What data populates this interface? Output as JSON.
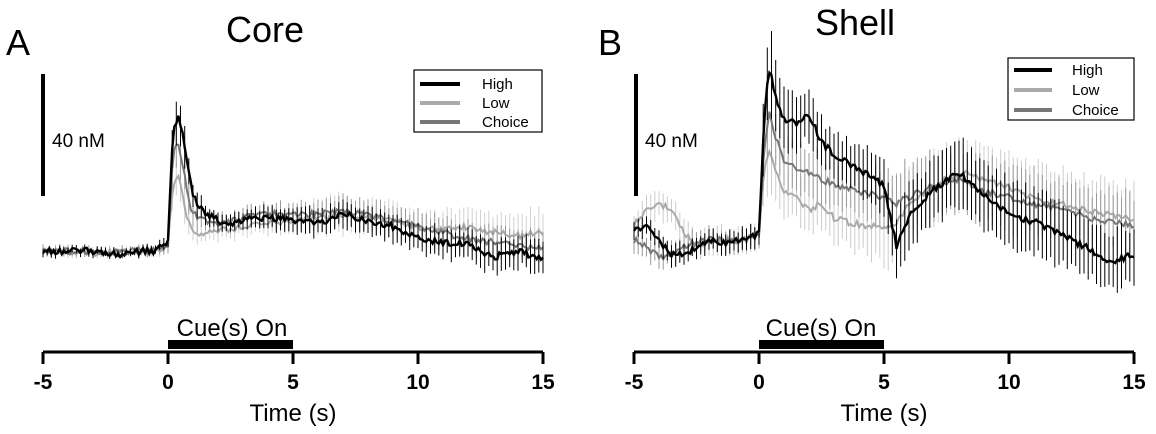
{
  "chart_data": [
    {
      "type": "line",
      "panel_label": "A",
      "title": "Core",
      "xlabel": "Time (s)",
      "ylabel": "",
      "xlim": [
        -5,
        15
      ],
      "x_ticks": [
        "-5",
        "0",
        "5",
        "10",
        "15"
      ],
      "scale_bar": {
        "value": 40,
        "label": "40 nM"
      },
      "cue_bar": {
        "label": "Cue(s) On",
        "start": 0,
        "end": 5
      },
      "legend": {
        "position": "top-right",
        "entries": [
          "High",
          "Low",
          "Choice"
        ]
      },
      "grid": false,
      "units": "nM",
      "series": [
        {
          "name": "High",
          "color": "#000000",
          "error_color": "#000000",
          "x": [
            -5,
            -4,
            -3,
            -2,
            -1,
            -0.5,
            0,
            0.2,
            0.4,
            0.6,
            0.8,
            1.0,
            1.5,
            2,
            2.5,
            3,
            4,
            5,
            6,
            7,
            8,
            9,
            10,
            11,
            12,
            13,
            14,
            15
          ],
          "y": [
            0,
            0,
            0,
            -1,
            0,
            0,
            3,
            40,
            44,
            38,
            28,
            18,
            12,
            10,
            9,
            10,
            11,
            10,
            9,
            12,
            10,
            8,
            4,
            3,
            2,
            -2,
            0,
            -3
          ],
          "sem": [
            1.5,
            1.5,
            1.5,
            1.5,
            1.5,
            1.5,
            3,
            9,
            10,
            8,
            6,
            5,
            4,
            3.5,
            3.5,
            3.5,
            4,
            4.5,
            5,
            5,
            5,
            5,
            5,
            5.5,
            5.5,
            6,
            6,
            6
          ]
        },
        {
          "name": "Low",
          "color": "#aaaaaa",
          "error_color": "#d0d0d0",
          "x": [
            -5,
            -4,
            -3,
            -2,
            -1,
            -0.5,
            0,
            0.2,
            0.4,
            0.6,
            0.8,
            1.0,
            1.5,
            2,
            2.5,
            3,
            4,
            5,
            6,
            7,
            8,
            9,
            10,
            11,
            12,
            13,
            14,
            15
          ],
          "y": [
            0,
            0,
            -1,
            0,
            0,
            0,
            2,
            22,
            26,
            18,
            10,
            6,
            6,
            7,
            7,
            8,
            9,
            10,
            11,
            12,
            11,
            10,
            8,
            7,
            8,
            6,
            5,
            6
          ],
          "sem": [
            1.5,
            1.5,
            1.5,
            1.5,
            1.5,
            1.5,
            3,
            7,
            8,
            6,
            5,
            4,
            3.5,
            3.5,
            3.5,
            3.5,
            4,
            5,
            6,
            7,
            7,
            7,
            7,
            7,
            7.5,
            8,
            8,
            8
          ]
        },
        {
          "name": "Choice",
          "color": "#777777",
          "error_color": "#999999",
          "x": [
            -5,
            -4,
            -3,
            -2,
            -1,
            -0.5,
            0,
            0.2,
            0.4,
            0.6,
            0.8,
            1.0,
            1.5,
            2,
            2.5,
            3,
            4,
            5,
            6,
            7,
            8,
            9,
            10,
            11,
            12,
            13,
            14,
            15
          ],
          "y": [
            0,
            0,
            0,
            0,
            0,
            0,
            2,
            32,
            36,
            28,
            18,
            12,
            10,
            9,
            10,
            11,
            12,
            12,
            12,
            13,
            12,
            10,
            8,
            6,
            4,
            3,
            2,
            1
          ],
          "sem": [
            1.5,
            1.5,
            1.5,
            1.5,
            1.5,
            1.5,
            3,
            8,
            9,
            7,
            6,
            5,
            4,
            3.5,
            3.5,
            3.5,
            4,
            4.5,
            5,
            5.5,
            5.5,
            5.5,
            5.5,
            6,
            6,
            6,
            6,
            6
          ]
        }
      ]
    },
    {
      "type": "line",
      "panel_label": "B",
      "title": "Shell",
      "xlabel": "Time (s)",
      "ylabel": "",
      "xlim": [
        -5,
        15
      ],
      "x_ticks": [
        "-5",
        "0",
        "5",
        "10",
        "15"
      ],
      "scale_bar": {
        "value": 40,
        "label": "40 nM"
      },
      "cue_bar": {
        "label": "Cue(s) On",
        "start": 0,
        "end": 5
      },
      "legend": {
        "position": "top-right",
        "entries": [
          "High",
          "Low",
          "Choice"
        ]
      },
      "grid": false,
      "units": "nM",
      "series": [
        {
          "name": "High",
          "color": "#000000",
          "error_color": "#000000",
          "x": [
            -5,
            -4.5,
            -4,
            -3.5,
            -3,
            -2.5,
            -2,
            -1.5,
            -1,
            -0.5,
            0,
            0.2,
            0.4,
            0.6,
            0.8,
            1.0,
            1.5,
            2,
            2.5,
            3,
            4,
            5,
            5.5,
            6,
            7,
            8,
            9,
            10,
            11,
            12,
            13,
            14,
            15
          ],
          "y": [
            3,
            5,
            0,
            -5,
            -4,
            -3,
            0,
            -1,
            0,
            0,
            2,
            40,
            56,
            50,
            43,
            40,
            38,
            41,
            32,
            28,
            23,
            18,
            -2,
            8,
            17,
            22,
            15,
            8,
            6,
            2,
            -2,
            -7,
            -5
          ],
          "sem": [
            4,
            4,
            4,
            4,
            4,
            4,
            4,
            4,
            4,
            4,
            5,
            14,
            16,
            14,
            12,
            11,
            10,
            10,
            9,
            9,
            9,
            10,
            12,
            12,
            12,
            12,
            12,
            12,
            12,
            11,
            11,
            11,
            11
          ]
        },
        {
          "name": "Low",
          "color": "#aaaaaa",
          "error_color": "#cccccc",
          "x": [
            -5,
            -4.5,
            -4,
            -3.5,
            -3,
            -2.5,
            -2,
            -1.5,
            -1,
            -0.5,
            0,
            0.2,
            0.4,
            0.6,
            0.8,
            1.0,
            1.5,
            2,
            2.5,
            3,
            4,
            5,
            5.5,
            6,
            7,
            8,
            9,
            10,
            11,
            12,
            13,
            14,
            15
          ],
          "y": [
            5,
            10,
            12,
            10,
            2,
            -2,
            0,
            0,
            0,
            0,
            2,
            22,
            30,
            25,
            20,
            16,
            14,
            10,
            12,
            7,
            5,
            4,
            6,
            12,
            18,
            22,
            20,
            17,
            14,
            12,
            10,
            8,
            7
          ],
          "sem": [
            5,
            5,
            5,
            5,
            5,
            5,
            5,
            5,
            5,
            5,
            6,
            12,
            14,
            12,
            10,
            9,
            9,
            9,
            9,
            9,
            10,
            14,
            17,
            15,
            13,
            13,
            13,
            13,
            13,
            13,
            13,
            13,
            13
          ]
        },
        {
          "name": "Choice",
          "color": "#777777",
          "error_color": "#999999",
          "x": [
            -5,
            -4.5,
            -4,
            -3.5,
            -3,
            -2.5,
            -2,
            -1.5,
            -1,
            -0.5,
            0,
            0.2,
            0.4,
            0.6,
            0.8,
            1.0,
            1.5,
            2,
            2.5,
            3,
            4,
            5,
            5.5,
            6,
            7,
            8,
            9,
            10,
            11,
            12,
            13,
            14,
            15
          ],
          "y": [
            0,
            -2,
            -6,
            -4,
            -2,
            -1,
            0,
            0,
            0,
            0,
            2,
            30,
            42,
            36,
            30,
            26,
            24,
            22,
            20,
            18,
            16,
            14,
            12,
            14,
            18,
            20,
            16,
            14,
            12,
            10,
            8,
            6,
            5
          ],
          "sem": [
            4,
            4,
            4,
            4,
            4,
            4,
            4,
            4,
            4,
            4,
            5,
            12,
            14,
            12,
            10,
            9,
            9,
            9,
            9,
            9,
            9,
            11,
            13,
            13,
            12,
            12,
            12,
            12,
            12,
            11,
            11,
            11,
            11
          ]
        }
      ]
    }
  ]
}
